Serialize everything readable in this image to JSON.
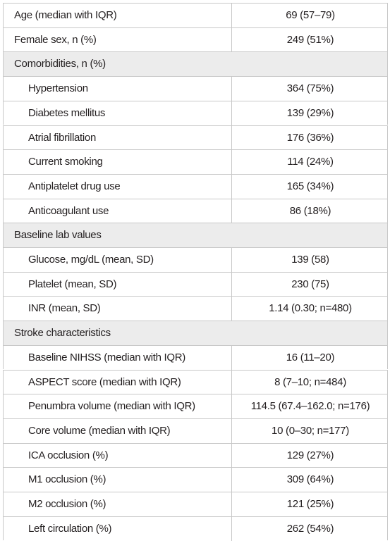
{
  "table": {
    "rows": [
      [
        "Age (median with IQR)",
        "69 (57–79)"
      ],
      [
        "Female sex, n (%)",
        "249 (51%)"
      ],
      {
        "heading": "Comorbidities, n (%)",
        "rows": [
          [
            "Hypertension",
            "364 (75%)"
          ],
          [
            "Diabetes mellitus",
            "139 (29%)"
          ],
          [
            "Atrial fibrillation",
            "176 (36%)"
          ],
          [
            "Current smoking",
            "114 (24%)"
          ],
          [
            "Antiplatelet drug use",
            "165 (34%)"
          ],
          [
            "Anticoagulant use",
            "86 (18%)"
          ]
        ]
      },
      {
        "heading": "Baseline lab values",
        "rows": [
          [
            "Glucose, mg/dL (mean, SD)",
            "139 (58)"
          ],
          [
            "Platelet (mean, SD)",
            "230 (75)"
          ],
          [
            "INR (mean, SD)",
            "1.14 (0.30; n=480)"
          ]
        ]
      },
      {
        "heading": "Stroke characteristics",
        "rows": [
          [
            "Baseline NIHSS (median with IQR)",
            "16 (11–20)"
          ],
          [
            "ASPECT score (median with IQR)",
            "8 (7–10; n=484)"
          ],
          [
            "Penumbra volume (median with IQR)",
            "114.5 (67.4–162.0; n=176)"
          ],
          [
            "Core volume (median with IQR)",
            "10 (0–30; n=177)"
          ],
          [
            "ICA occlusion (%)",
            "129 (27%)"
          ],
          [
            "M1 occlusion (%)",
            "309 (64%)"
          ],
          [
            "M2 occlusion (%)",
            "121 (25%)"
          ],
          [
            "Left circulation (%)",
            "262 (54%)"
          ]
        ]
      }
    ]
  }
}
